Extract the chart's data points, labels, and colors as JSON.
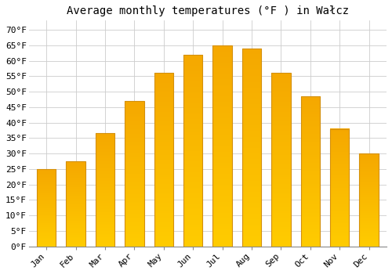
{
  "title": "Average monthly temperatures (°F ) in Wałcz",
  "months": [
    "Jan",
    "Feb",
    "Mar",
    "Apr",
    "May",
    "Jun",
    "Jul",
    "Aug",
    "Sep",
    "Oct",
    "Nov",
    "Dec"
  ],
  "values": [
    25,
    27.5,
    36.5,
    47,
    56,
    62,
    65,
    64,
    56,
    48.5,
    38,
    30
  ],
  "bar_color_bottom": "#F5A800",
  "bar_color_top": "#FFCC00",
  "bar_edge_color": "#D4900A",
  "background_color": "#FFFFFF",
  "grid_color": "#CCCCCC",
  "ylim": [
    0,
    73
  ],
  "yticks": [
    0,
    5,
    10,
    15,
    20,
    25,
    30,
    35,
    40,
    45,
    50,
    55,
    60,
    65,
    70
  ],
  "ytick_labels": [
    "0°F",
    "5°F",
    "10°F",
    "15°F",
    "20°F",
    "25°F",
    "30°F",
    "35°F",
    "40°F",
    "45°F",
    "50°F",
    "55°F",
    "60°F",
    "65°F",
    "70°F"
  ],
  "title_fontsize": 10,
  "tick_fontsize": 8,
  "font_family": "monospace",
  "bar_width": 0.65
}
